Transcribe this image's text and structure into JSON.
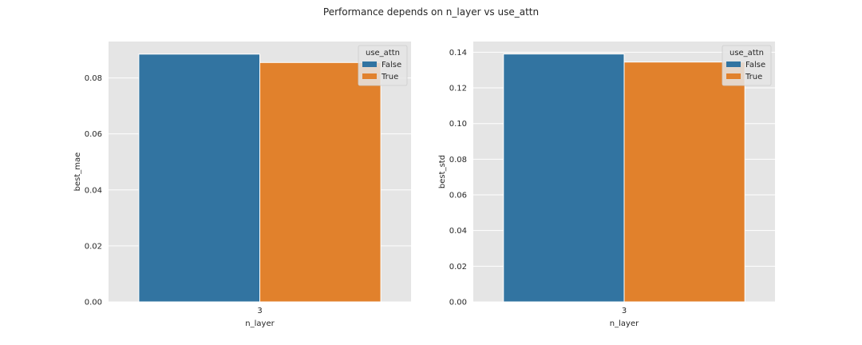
{
  "figure": {
    "suptitle": "Performance depends on n_layer vs use_attn"
  },
  "chart_data": [
    {
      "type": "bar",
      "categories": [
        "3"
      ],
      "series": [
        {
          "name": "False",
          "values": [
            0.0885
          ],
          "color": "#3274a1"
        },
        {
          "name": "True",
          "values": [
            0.0855
          ],
          "color": "#e1812c"
        }
      ],
      "xlabel": "n_layer",
      "ylabel": "best_mae",
      "ylim": [
        0,
        0.093
      ],
      "yticks": [
        0.0,
        0.02,
        0.04,
        0.06,
        0.08
      ],
      "ytick_labels": [
        "0.00",
        "0.02",
        "0.04",
        "0.06",
        "0.08"
      ],
      "legend_title": "use_attn",
      "legend_position": "top-right",
      "grid": true,
      "background": "#e5e5e5"
    },
    {
      "type": "bar",
      "categories": [
        "3"
      ],
      "series": [
        {
          "name": "False",
          "values": [
            0.139
          ],
          "color": "#3274a1"
        },
        {
          "name": "True",
          "values": [
            0.1345
          ],
          "color": "#e1812c"
        }
      ],
      "xlabel": "n_layer",
      "ylabel": "best_std",
      "ylim": [
        0,
        0.146
      ],
      "yticks": [
        0.0,
        0.02,
        0.04,
        0.06,
        0.08,
        0.1,
        0.12,
        0.14
      ],
      "ytick_labels": [
        "0.00",
        "0.02",
        "0.04",
        "0.06",
        "0.08",
        "0.10",
        "0.12",
        "0.14"
      ],
      "legend_title": "use_attn",
      "legend_position": "top-right",
      "grid": true,
      "background": "#e5e5e5"
    }
  ]
}
